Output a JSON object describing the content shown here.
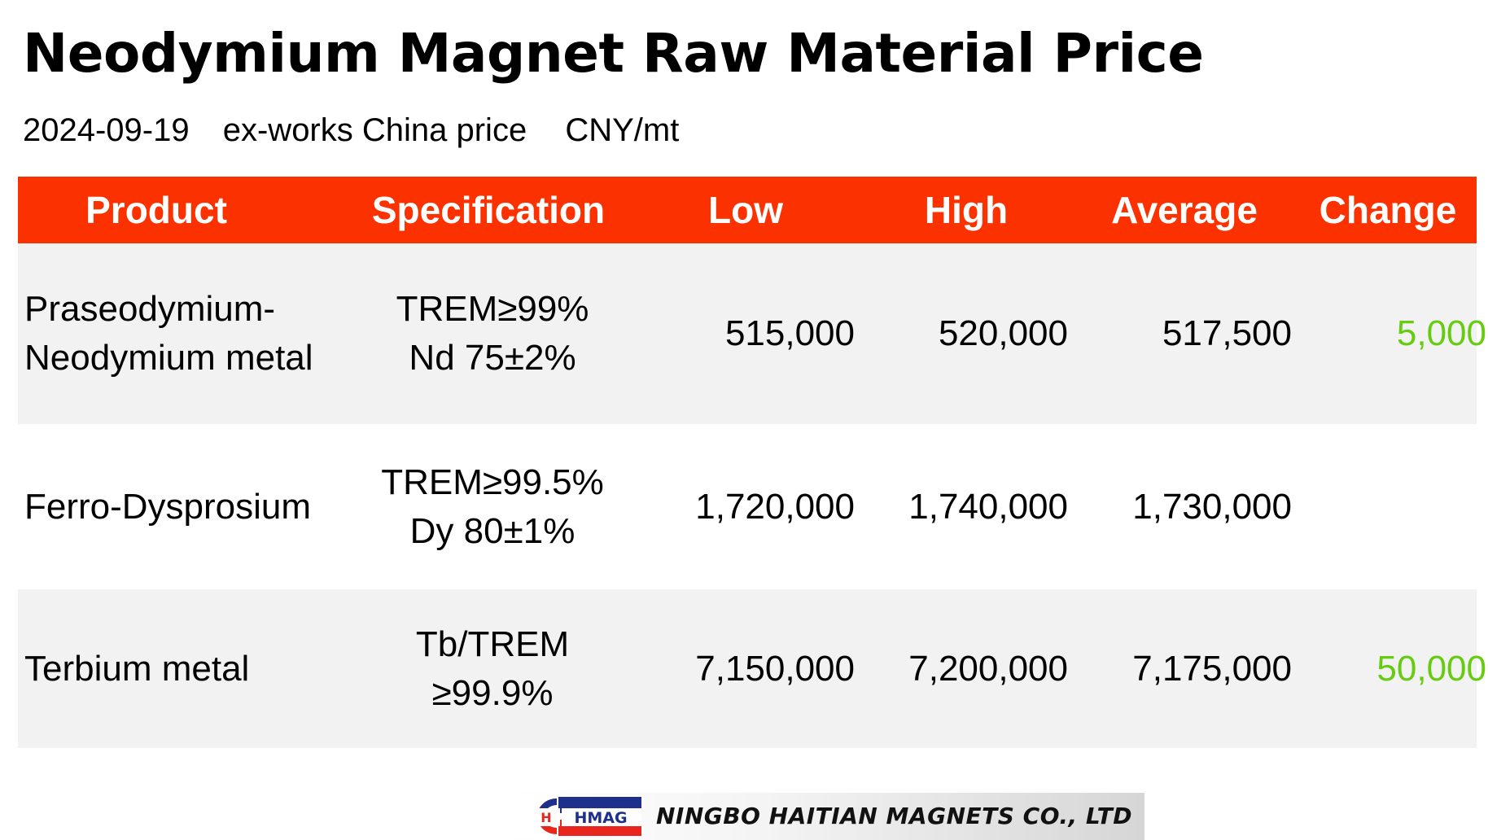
{
  "title": "Neodymium Magnet Raw Material Price",
  "subtitle": {
    "date": "2024-09-19",
    "basis": "ex-works China price",
    "unit": "CNY/mt"
  },
  "colors": {
    "header_bg": "#fb3200",
    "change_text": "#66cc11",
    "row_shade": "#f2f2f2"
  },
  "table": {
    "headers": {
      "product": "Product",
      "specification": "Specification",
      "low": "Low",
      "high": "High",
      "average": "Average",
      "change": "Change"
    },
    "rows": [
      {
        "product": [
          "Praseodymium-",
          "Neodymium metal"
        ],
        "specification": [
          "TREM≥99%",
          "Nd 75±2%"
        ],
        "low": "515,000",
        "high": "520,000",
        "average": "517,500",
        "change": "5,000"
      },
      {
        "product": [
          "Ferro-Dysprosium"
        ],
        "specification": [
          "TREM≥99.5%",
          "Dy 80±1%"
        ],
        "low": "1,720,000",
        "high": "1,740,000",
        "average": "1,730,000",
        "change": ""
      },
      {
        "product": [
          "Terbium metal"
        ],
        "specification": [
          "Tb/TREM",
          "≥99.9%"
        ],
        "low": "7,150,000",
        "high": "7,200,000",
        "average": "7,175,000",
        "change": "50,000"
      }
    ]
  },
  "logo": {
    "mark_text": "HMAG",
    "company": "NINGBO HAITIAN MAGNETS CO., LTD"
  }
}
